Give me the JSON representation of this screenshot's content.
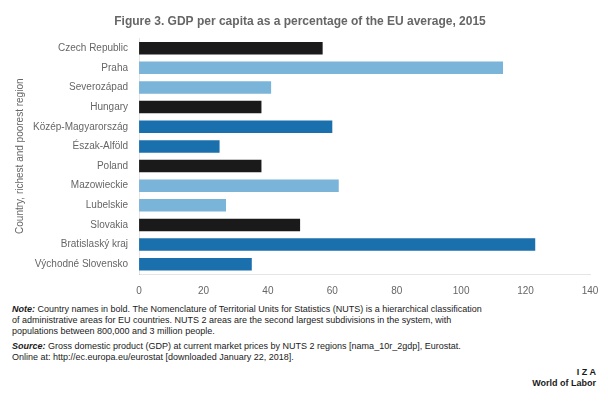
{
  "chart_data": {
    "type": "bar",
    "orientation": "horizontal",
    "title": "Figure 3. GDP per capita as a percentage of the EU average, 2015",
    "ylabel": "Country, richest and poorest region",
    "categories": [
      "Czech Republic",
      "Praha",
      "Severozápad",
      "Hungary",
      "Közép-Magyarország",
      "Észak-Alföld",
      "Poland",
      "Mazowieckie",
      "Lubelskie",
      "Slovakia",
      "Bratislaský kraj",
      "Východné Slovensko"
    ],
    "values": [
      57,
      113,
      41,
      38,
      60,
      25,
      38,
      62,
      27,
      50,
      123,
      35
    ],
    "colors": [
      "#1a1a1a",
      "#7ab4d8",
      "#7ab4d8",
      "#1a1a1a",
      "#1a6fad",
      "#1a6fad",
      "#1a1a1a",
      "#7ab4d8",
      "#7ab4d8",
      "#1a1a1a",
      "#1a6fad",
      "#1a6fad"
    ],
    "xlim": [
      0,
      140
    ],
    "xticks": [
      0,
      20,
      40,
      60,
      80,
      100,
      120,
      140
    ],
    "grid": false,
    "annotations": [
      {
        "label": "Note:",
        "text": "Country names in bold. The Nomenclature of Territorial Units for Statistics (NUTS) is a hierarchical classification\nof administrative areas for EU countries. NUTS 2 areas are the second largest subdivisions in the system, with\npopulations between 800,000 and 3 million people."
      },
      {
        "label": "Source:",
        "text": "Gross domestic product (GDP) at current market prices by NUTS 2 regions [nama_10r_2gdp], Eurostat.\nOnline at: http://ec.europa.eu/eurostat [downloaded January 22, 2018]."
      },
      {
        "text": "I Z A"
      },
      {
        "text": "World of Labor"
      }
    ]
  }
}
